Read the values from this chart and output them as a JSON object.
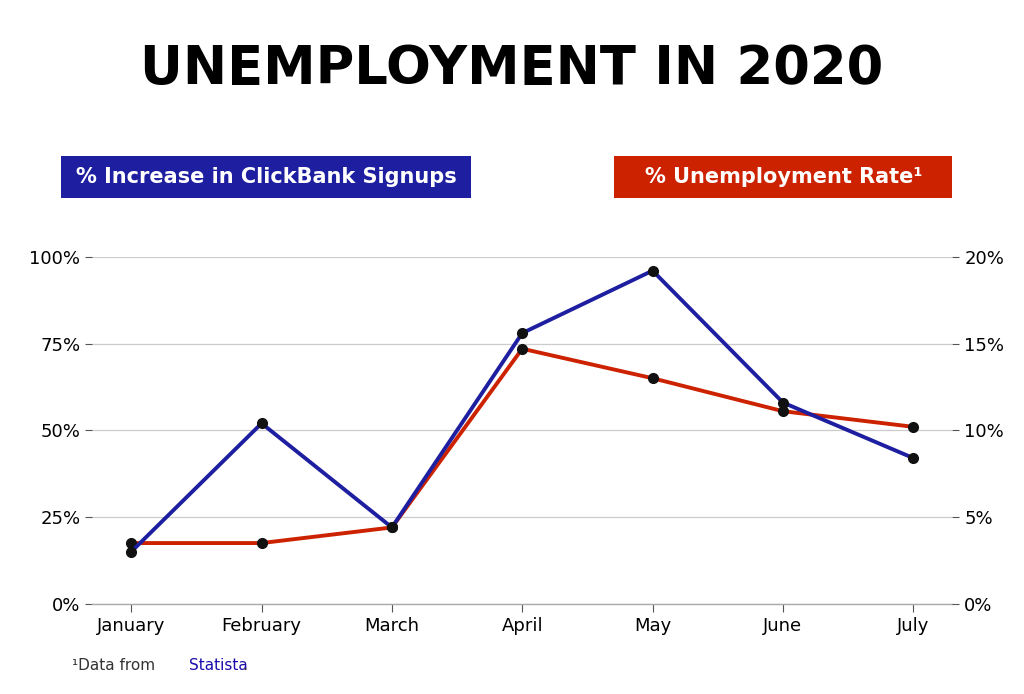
{
  "title": "UNEMPLOYMENT IN 2020",
  "months": [
    "January",
    "February",
    "March",
    "April",
    "May",
    "June",
    "July"
  ],
  "clickbank_pct": [
    15,
    52,
    22,
    78,
    96,
    58,
    42
  ],
  "unemployment_pct": [
    3.5,
    3.5,
    4.4,
    14.7,
    13.0,
    11.1,
    10.2
  ],
  "blue_color": "#1E1EA0",
  "red_color": "#CC2200",
  "left_ylim": [
    0,
    100
  ],
  "right_ylim": [
    0,
    20
  ],
  "left_yticks": [
    0,
    25,
    50,
    75,
    100
  ],
  "right_yticks": [
    0,
    5,
    10,
    15,
    20
  ],
  "left_yticklabels": [
    "0%",
    "25%",
    "50%",
    "75%",
    "100%"
  ],
  "right_yticklabels": [
    "0%",
    "5%",
    "10%",
    "15%",
    "20%"
  ],
  "legend_blue_label": "% Increase in ClickBank Signups",
  "legend_red_label": "% Unemployment Rate¹",
  "background_color": "#ffffff",
  "grid_color": "#cccccc",
  "title_fontsize": 38,
  "tick_fontsize": 13,
  "legend_fontsize": 15,
  "line_width": 2.8,
  "marker_size": 7,
  "marker_color": "#111111"
}
